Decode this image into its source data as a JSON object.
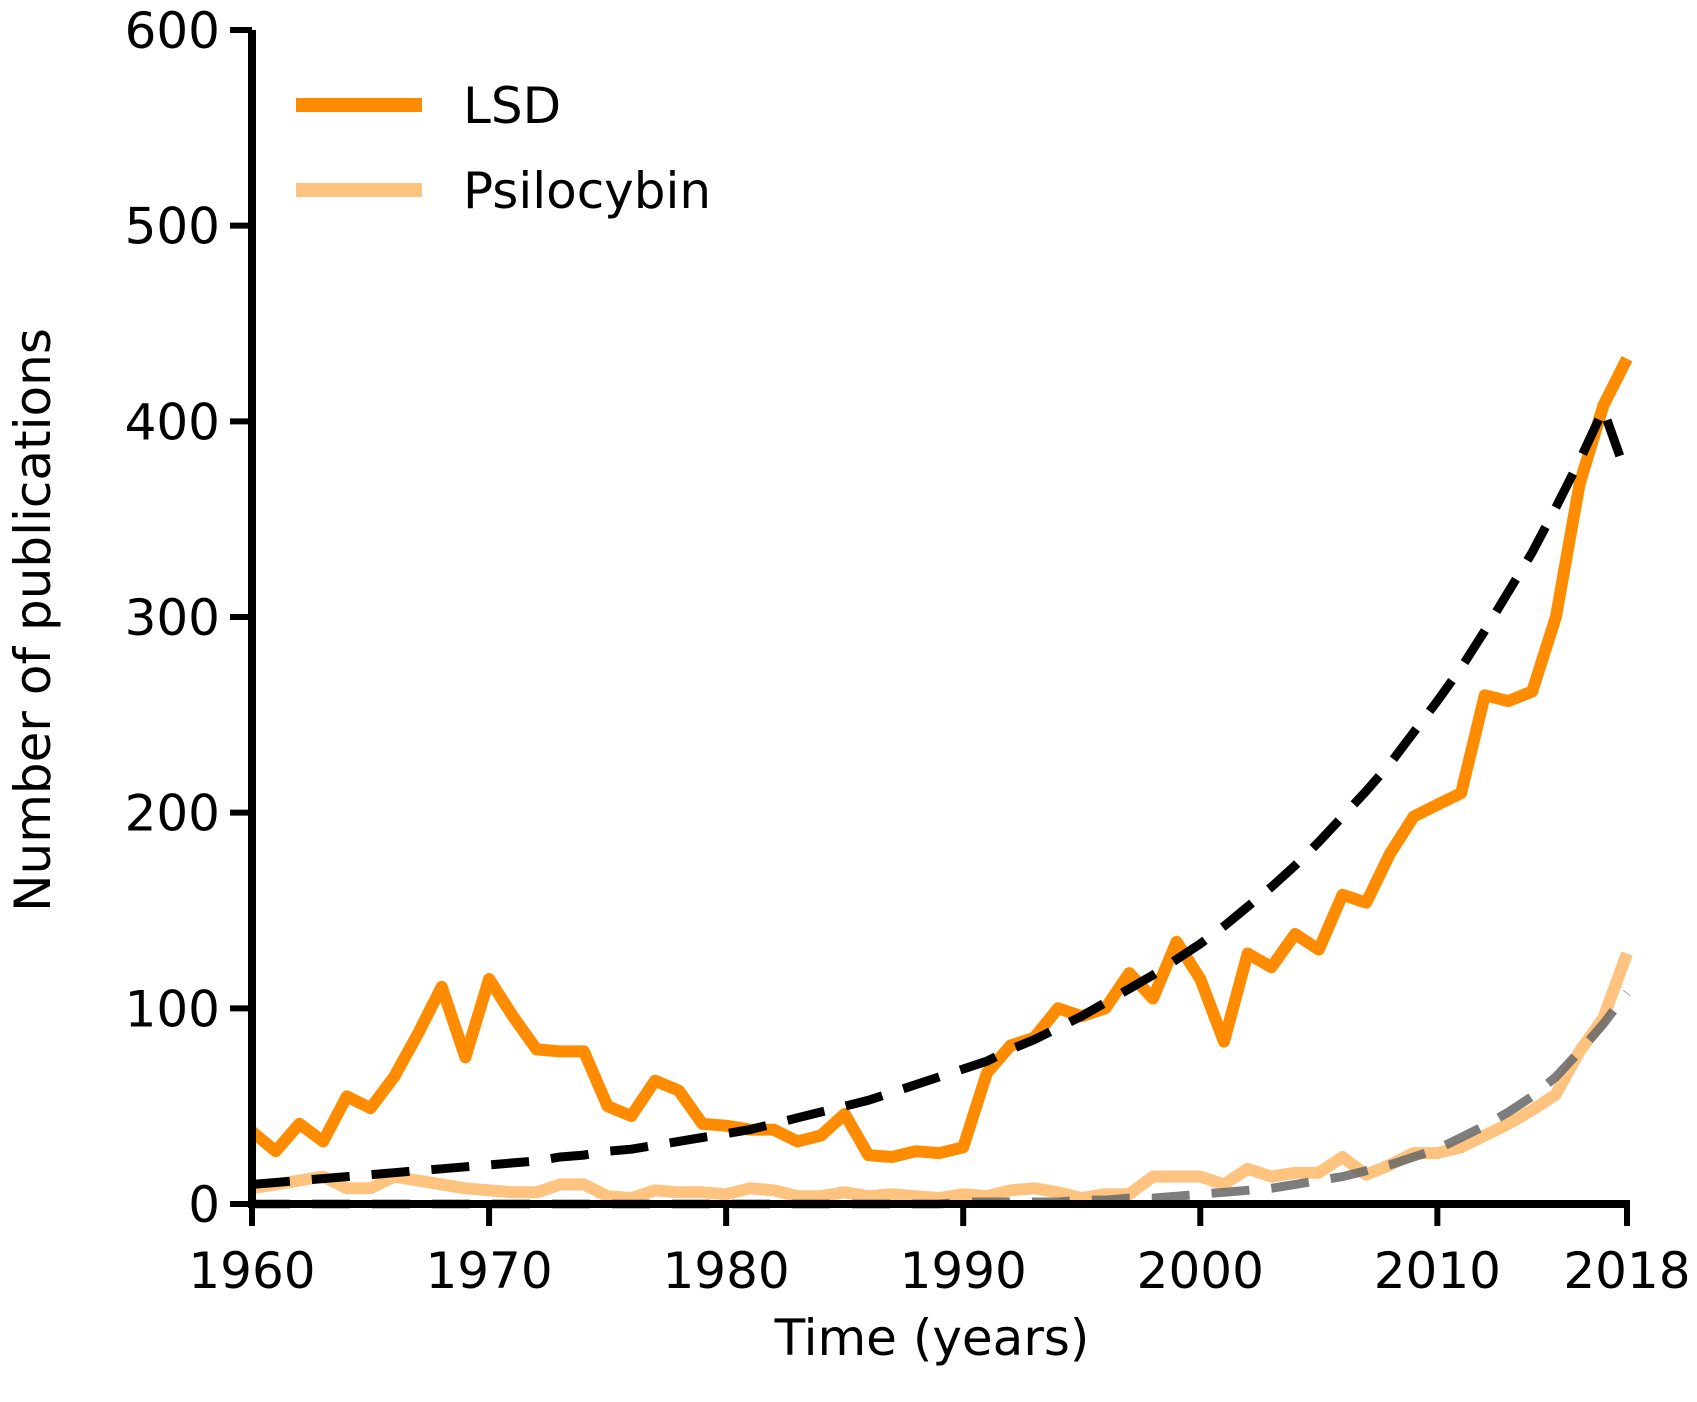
{
  "chart_data": {
    "type": "line",
    "title": "",
    "xlabel": "Time (years)",
    "ylabel": "Number of publications",
    "xlim": [
      1960,
      2018
    ],
    "ylim": [
      0,
      600
    ],
    "x_ticks": [
      1960,
      1970,
      1980,
      1990,
      2000,
      2010,
      2018
    ],
    "y_ticks": [
      0,
      100,
      200,
      300,
      400,
      500,
      600
    ],
    "grid": false,
    "legend_position": "top-left",
    "x": [
      1960,
      1961,
      1962,
      1963,
      1964,
      1965,
      1966,
      1967,
      1968,
      1969,
      1970,
      1971,
      1972,
      1973,
      1974,
      1975,
      1976,
      1977,
      1978,
      1979,
      1980,
      1981,
      1982,
      1983,
      1984,
      1985,
      1986,
      1987,
      1988,
      1989,
      1990,
      1991,
      1992,
      1993,
      1994,
      1995,
      1996,
      1997,
      1998,
      1999,
      2000,
      2001,
      2002,
      2003,
      2004,
      2005,
      2006,
      2007,
      2008,
      2009,
      2010,
      2011,
      2012,
      2013,
      2014,
      2015,
      2016,
      2017,
      2018
    ],
    "series": [
      {
        "name": "LSD",
        "color": "#ff8c00",
        "style": "solid",
        "values": [
          37,
          27,
          41,
          32,
          55,
          49,
          65,
          87,
          111,
          75,
          115,
          96,
          79,
          78,
          78,
          50,
          45,
          63,
          58,
          41,
          40,
          38,
          38,
          32,
          35,
          46,
          25,
          24,
          27,
          26,
          29,
          67,
          81,
          85,
          100,
          96,
          100,
          118,
          105,
          134,
          115,
          83,
          128,
          121,
          138,
          130,
          158,
          154,
          179,
          198,
          204,
          210,
          260,
          257,
          262,
          300,
          368,
          408,
          432
        ],
        "trend": [
          10,
          11,
          12,
          13,
          14,
          15,
          16,
          17,
          18,
          19,
          20,
          21,
          22,
          24,
          25,
          27,
          28,
          30,
          32,
          34,
          36,
          38,
          41,
          44,
          47,
          50,
          53,
          57,
          61,
          65,
          69,
          73,
          79,
          84,
          90,
          96,
          103,
          110,
          117,
          125,
          133,
          142,
          152,
          162,
          173,
          185,
          198,
          211,
          225,
          241,
          257,
          274,
          293,
          313,
          333,
          356,
          380,
          406,
          372
        ],
        "trend_color": "#000000"
      },
      {
        "name": "Psilocybin",
        "color": "#ffc380",
        "style": "solid",
        "values": [
          8,
          10,
          12,
          14,
          8,
          8,
          14,
          12,
          10,
          8,
          7,
          6,
          6,
          10,
          10,
          4,
          3,
          7,
          6,
          6,
          5,
          8,
          7,
          4,
          4,
          6,
          4,
          5,
          4,
          3,
          5,
          4,
          7,
          8,
          6,
          3,
          5,
          5,
          14,
          14,
          14,
          10,
          18,
          14,
          16,
          16,
          24,
          15,
          20,
          26,
          26,
          29,
          35,
          41,
          48,
          56,
          78,
          95,
          128
        ],
        "trend": [
          0,
          0,
          0,
          0,
          0,
          0,
          0,
          0,
          0,
          0,
          0,
          0,
          0,
          0,
          0,
          0,
          0,
          0,
          0,
          0,
          0,
          0,
          0,
          0,
          0,
          0,
          0,
          0,
          0,
          0,
          1,
          1,
          1,
          1,
          1,
          2,
          2,
          3,
          3,
          4,
          5,
          6,
          7,
          8,
          10,
          12,
          14,
          17,
          20,
          24,
          28,
          34,
          40,
          47,
          55,
          65,
          78,
          92,
          108
        ],
        "trend_color": "#666666"
      }
    ]
  }
}
